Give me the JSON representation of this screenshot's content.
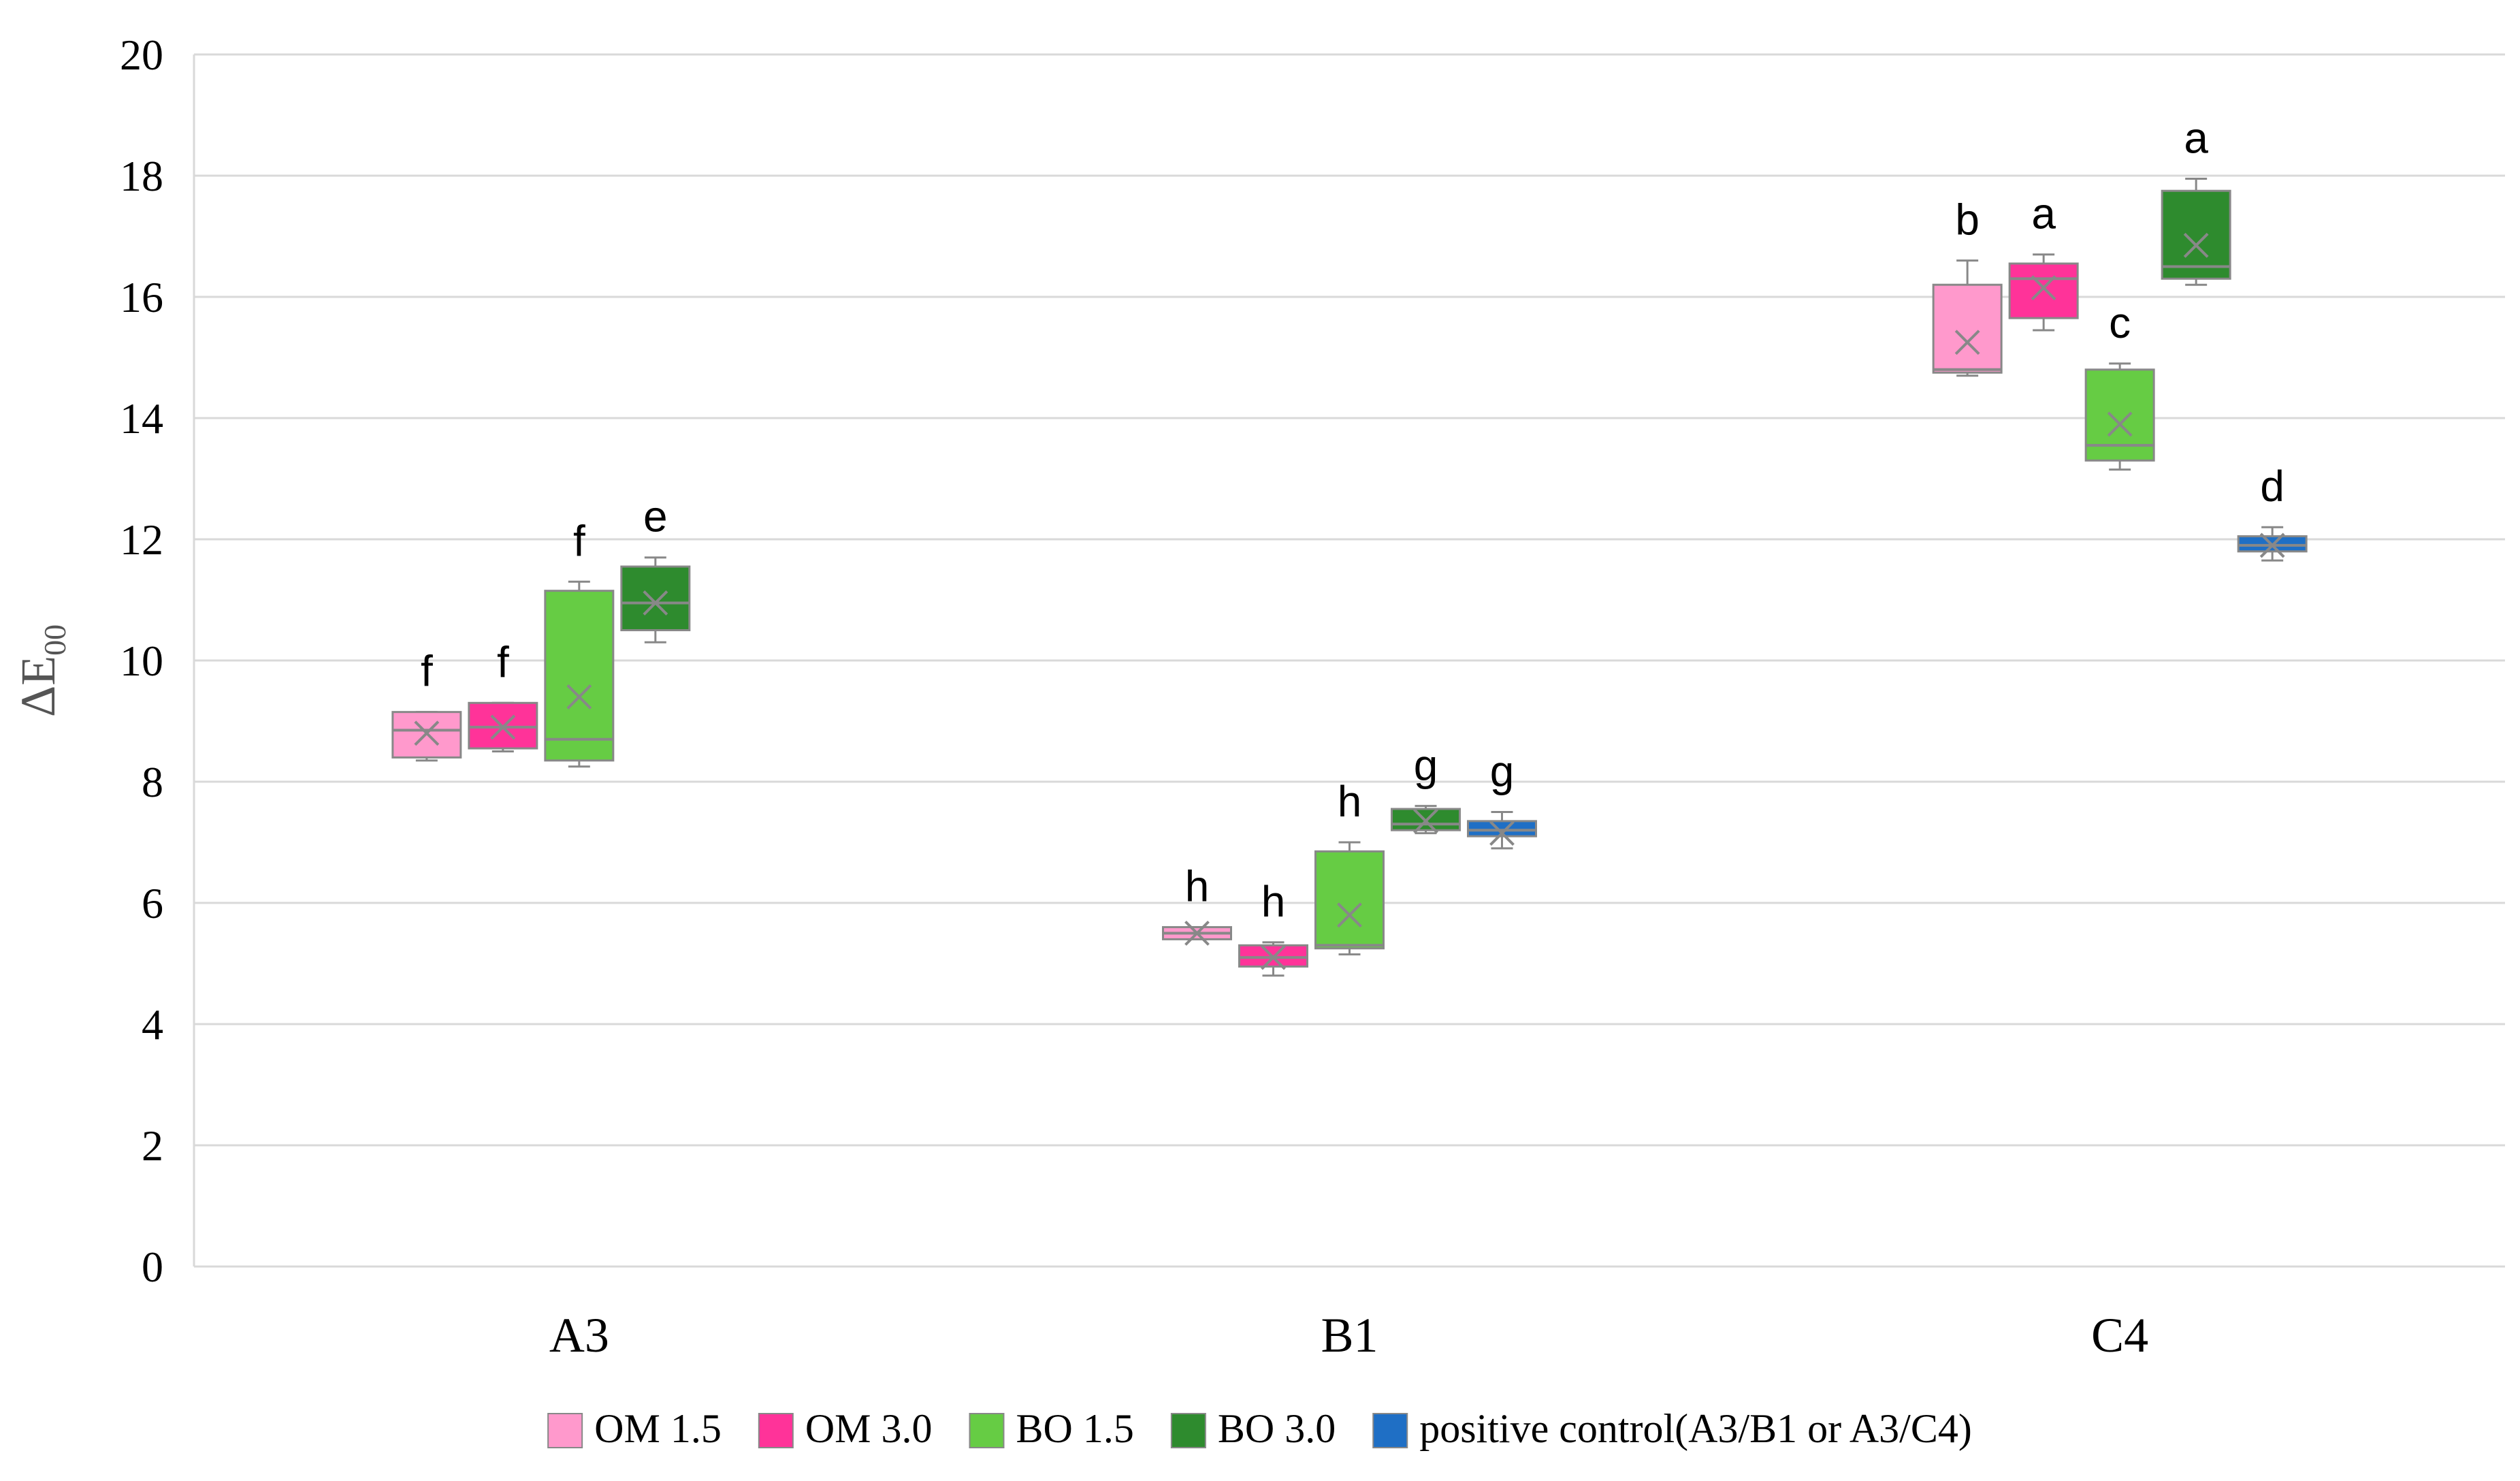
{
  "chart_data": {
    "type": "box",
    "ylabel": "ΔE",
    "ylabel_sub": "00",
    "ylim": [
      0,
      20
    ],
    "yticks": [
      0,
      2,
      4,
      6,
      8,
      10,
      12,
      14,
      16,
      18,
      20
    ],
    "grid": true,
    "legend_position": "bottom",
    "categories": [
      "A3",
      "B1",
      "C4"
    ],
    "series": [
      {
        "name": "OM 1.5",
        "color": "#ff99cc",
        "boxes": [
          {
            "category": "A3",
            "min": 8.35,
            "q1": 8.4,
            "median": 8.85,
            "q3": 9.15,
            "max": 9.15,
            "mean": 8.8,
            "letter": "f"
          },
          {
            "category": "B1",
            "min": 5.4,
            "q1": 5.4,
            "median": 5.5,
            "q3": 5.6,
            "max": 5.6,
            "mean": 5.5,
            "letter": "h"
          },
          {
            "category": "C4",
            "min": 14.7,
            "q1": 14.75,
            "median": 14.8,
            "q3": 16.2,
            "max": 16.6,
            "mean": 15.25,
            "letter": "b"
          }
        ]
      },
      {
        "name": "OM 3.0",
        "color": "#ff3399",
        "boxes": [
          {
            "category": "A3",
            "min": 8.5,
            "q1": 8.55,
            "median": 8.9,
            "q3": 9.3,
            "max": 9.3,
            "mean": 8.9,
            "letter": "f"
          },
          {
            "category": "B1",
            "min": 4.8,
            "q1": 4.95,
            "median": 5.1,
            "q3": 5.3,
            "max": 5.35,
            "mean": 5.1,
            "letter": "h"
          },
          {
            "category": "C4",
            "min": 15.45,
            "q1": 15.65,
            "median": 16.3,
            "q3": 16.55,
            "max": 16.7,
            "mean": 16.15,
            "letter": "a"
          }
        ]
      },
      {
        "name": "BO 1.5",
        "color": "#66cc44",
        "boxes": [
          {
            "category": "A3",
            "min": 8.25,
            "q1": 8.35,
            "median": 8.7,
            "q3": 11.15,
            "max": 11.3,
            "mean": 9.4,
            "letter": "f"
          },
          {
            "category": "B1",
            "min": 5.15,
            "q1": 5.25,
            "median": 5.3,
            "q3": 6.85,
            "max": 7.0,
            "mean": 5.8,
            "letter": "h"
          },
          {
            "category": "C4",
            "min": 13.15,
            "q1": 13.3,
            "median": 13.55,
            "q3": 14.8,
            "max": 14.9,
            "mean": 13.9,
            "letter": "c"
          }
        ]
      },
      {
        "name": "BO 3.0",
        "color": "#2e8b2e",
        "boxes": [
          {
            "category": "A3",
            "min": 10.3,
            "q1": 10.5,
            "median": 10.95,
            "q3": 11.55,
            "max": 11.7,
            "mean": 10.95,
            "letter": "e"
          },
          {
            "category": "B1",
            "min": 7.15,
            "q1": 7.2,
            "median": 7.3,
            "q3": 7.55,
            "max": 7.6,
            "mean": 7.35,
            "letter": "g"
          },
          {
            "category": "C4",
            "min": 16.2,
            "q1": 16.3,
            "median": 16.5,
            "q3": 17.75,
            "max": 17.95,
            "mean": 16.85,
            "letter": "a"
          }
        ]
      },
      {
        "name": "positive control(A3/B1 or A3/C4)",
        "color": "#1f6fc5",
        "boxes": [
          {
            "category": "B1",
            "min": 6.9,
            "q1": 7.1,
            "median": 7.2,
            "q3": 7.35,
            "max": 7.5,
            "mean": 7.15,
            "letter": "g"
          },
          {
            "category": "C4",
            "min": 11.65,
            "q1": 11.8,
            "median": 11.9,
            "q3": 12.05,
            "max": 12.2,
            "mean": 11.9,
            "letter": "d"
          }
        ]
      }
    ]
  }
}
